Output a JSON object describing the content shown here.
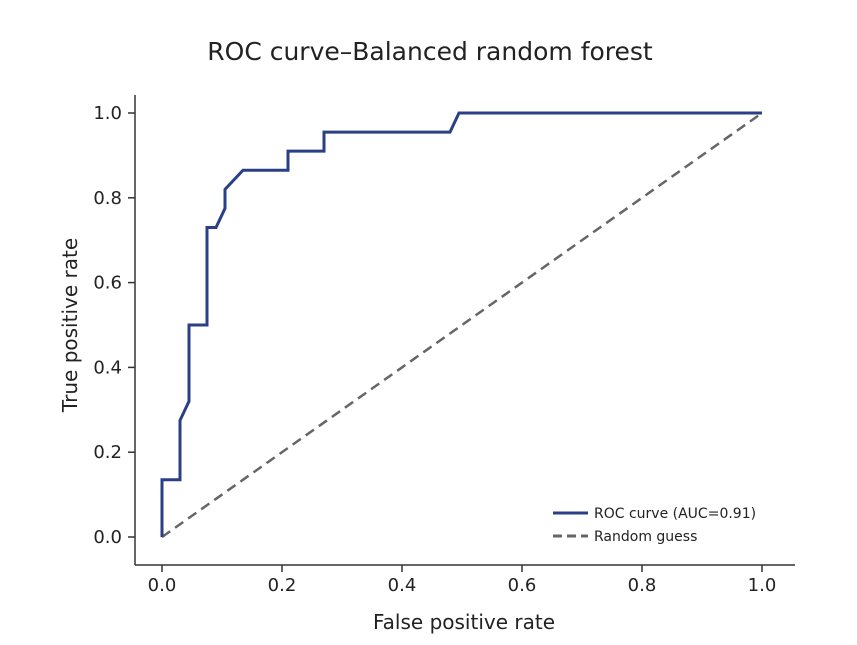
{
  "chart_data": {
    "type": "line",
    "title": "ROC curve–Balanced random forest",
    "xlabel": "False positive rate",
    "ylabel": "True positive rate",
    "xlim": [
      0.0,
      1.0
    ],
    "ylim": [
      0.0,
      1.0
    ],
    "xticks": [
      "0.0",
      "0.2",
      "0.4",
      "0.6",
      "0.8",
      "1.0"
    ],
    "yticks": [
      "0.0",
      "0.2",
      "0.4",
      "0.6",
      "0.8",
      "1.0"
    ],
    "grid": false,
    "legend_position": "bottom-right",
    "series": [
      {
        "name": "ROC curve (AUC=0.91)",
        "color": "#2b3f87",
        "style": "solid",
        "x": [
          0.0,
          0.0,
          0.03,
          0.03,
          0.045,
          0.045,
          0.075,
          0.075,
          0.09,
          0.105,
          0.105,
          0.135,
          0.21,
          0.21,
          0.27,
          0.27,
          0.48,
          0.495,
          1.0
        ],
        "y": [
          0.0,
          0.135,
          0.135,
          0.275,
          0.32,
          0.5,
          0.5,
          0.73,
          0.73,
          0.775,
          0.82,
          0.865,
          0.865,
          0.91,
          0.91,
          0.955,
          0.955,
          1.0,
          1.0
        ]
      },
      {
        "name": "Random guess",
        "color": "#666666",
        "style": "dashed",
        "x": [
          0.0,
          1.0
        ],
        "y": [
          0.0,
          1.0
        ]
      }
    ]
  }
}
